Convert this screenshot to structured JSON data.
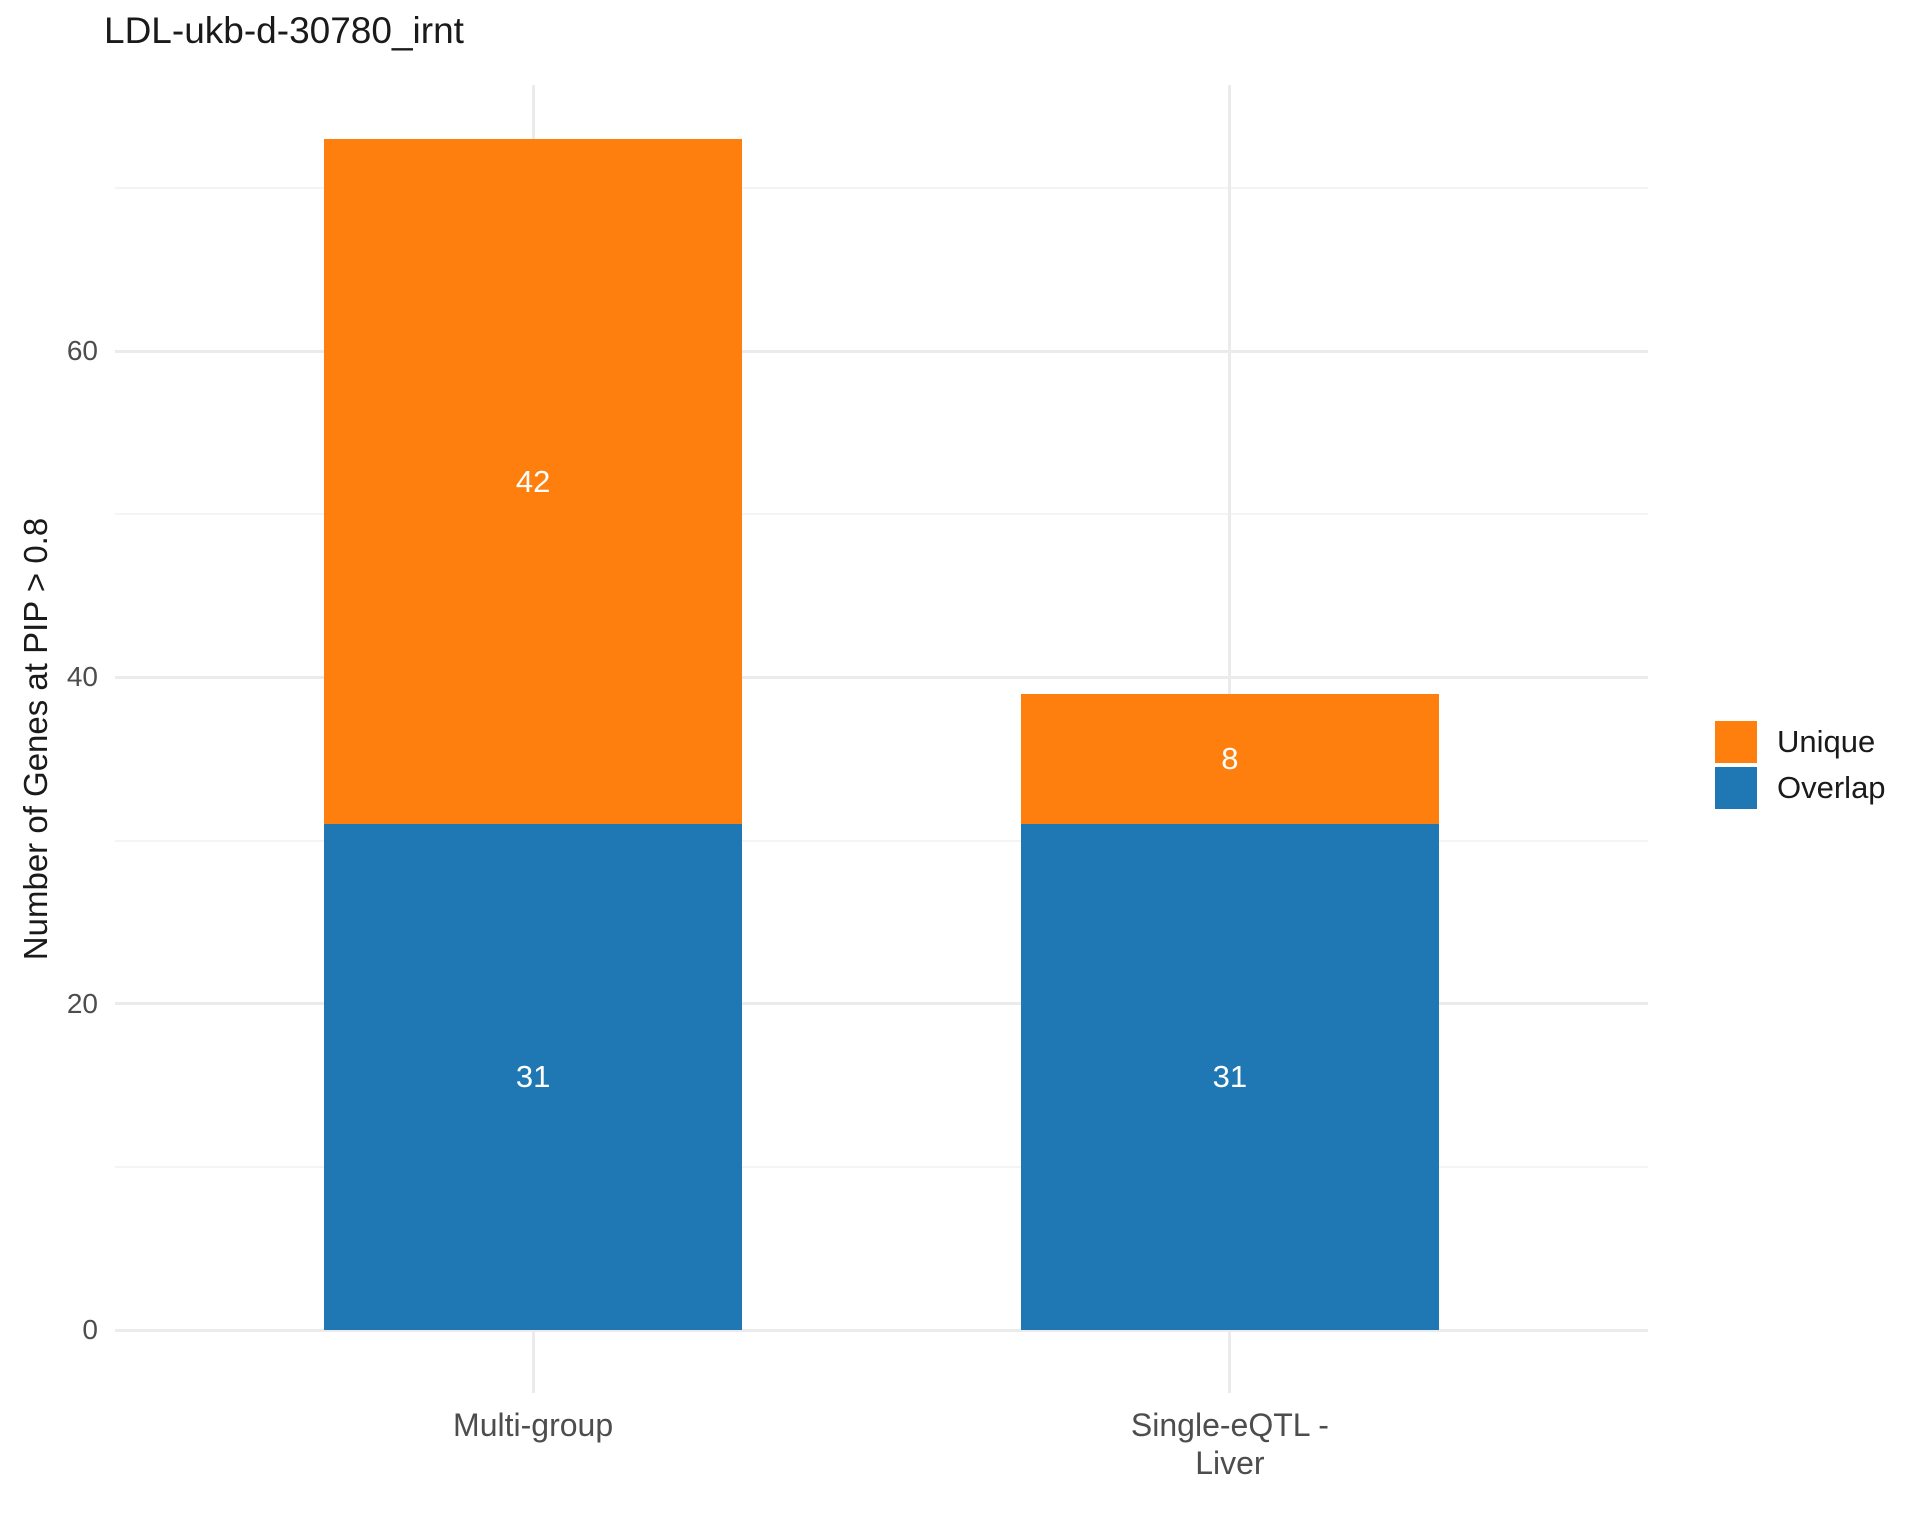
{
  "chart_data": {
    "type": "bar",
    "stacked": true,
    "title": "LDL-ukb-d-30780_irnt",
    "xlabel": "",
    "ylabel": "Number of Genes at PIP > 0.8",
    "categories": [
      "Multi-group",
      "Single-eQTL -\nLiver"
    ],
    "series": [
      {
        "name": "Overlap",
        "color": "#1F77B4",
        "values": [
          31,
          31
        ]
      },
      {
        "name": "Unique",
        "color": "#FF7F0E",
        "values": [
          42,
          8
        ]
      }
    ],
    "stack_totals": [
      73,
      39
    ],
    "segment_value_labels": [
      [
        31,
        42
      ],
      [
        31,
        8
      ]
    ],
    "ylim": [
      -3.85,
      76.3
    ],
    "yticks_major": [
      0,
      20,
      40,
      60
    ],
    "yticks_minor": [
      10,
      30,
      50,
      70
    ],
    "grid": "horizontal major+minor, vertical at category centers, light grey on white",
    "bar_width_fraction": 0.6,
    "legend": {
      "position": "right",
      "entries": [
        {
          "label": "Unique",
          "color": "#FF7F0E"
        },
        {
          "label": "Overlap",
          "color": "#1F77B4"
        }
      ]
    }
  },
  "colors": {
    "unique_orange": "#FF7F0E",
    "overlap_blue": "#1F77B4",
    "axis_text_grey": "#4D4D4D",
    "grid_major": "#EBEBEB",
    "grid_minor": "#F4F4F4",
    "bar_value_label": "#FFFFFF",
    "background": "#FFFFFF"
  }
}
